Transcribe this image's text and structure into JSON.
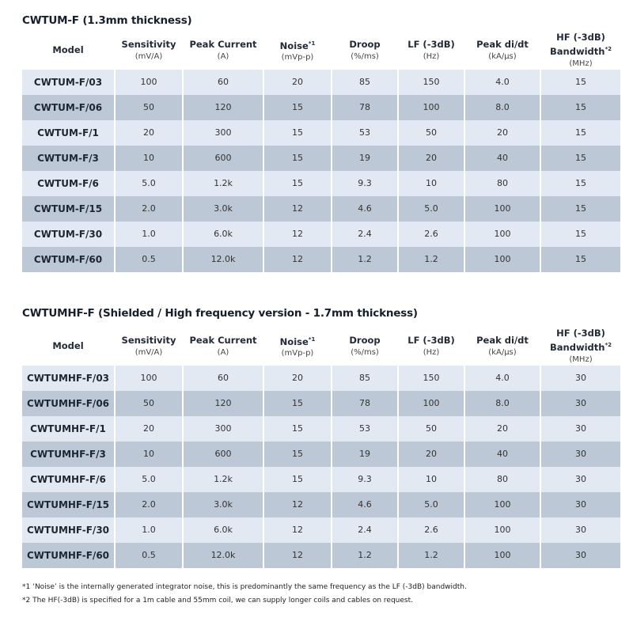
{
  "headers": [
    {
      "label": "Model",
      "unit": "",
      "sup": ""
    },
    {
      "label": "Sensitivity",
      "unit": "(mV/A)",
      "sup": ""
    },
    {
      "label": "Peak Current",
      "unit": "(A)",
      "sup": ""
    },
    {
      "label": "Noise",
      "unit": "(mVp-p)",
      "sup": "*1"
    },
    {
      "label": "Droop",
      "unit": "(%/ms)",
      "sup": ""
    },
    {
      "label": "LF (-3dB)",
      "unit": "(Hz)",
      "sup": ""
    },
    {
      "label": "Peak di/dt",
      "unit": "(kA/µs)",
      "sup": ""
    },
    {
      "label": "HF (-3dB) Bandwidth",
      "unit": "(MHz)",
      "sup": "*2"
    }
  ],
  "tables": [
    {
      "title": "CWTUM-F (1.3mm thickness)",
      "rows": [
        [
          "CWTUM-F/03",
          "100",
          "60",
          "20",
          "85",
          "150",
          "4.0",
          "15"
        ],
        [
          "CWTUM-F/06",
          "50",
          "120",
          "15",
          "78",
          "100",
          "8.0",
          "15"
        ],
        [
          "CWTUM-F/1",
          "20",
          "300",
          "15",
          "53",
          "50",
          "20",
          "15"
        ],
        [
          "CWTUM-F/3",
          "10",
          "600",
          "15",
          "19",
          "20",
          "40",
          "15"
        ],
        [
          "CWTUM-F/6",
          "5.0",
          "1.2k",
          "15",
          "9.3",
          "10",
          "80",
          "15"
        ],
        [
          "CWTUM-F/15",
          "2.0",
          "3.0k",
          "12",
          "4.6",
          "5.0",
          "100",
          "15"
        ],
        [
          "CWTUM-F/30",
          "1.0",
          "6.0k",
          "12",
          "2.4",
          "2.6",
          "100",
          "15"
        ],
        [
          "CWTUM-F/60",
          "0.5",
          "12.0k",
          "12",
          "1.2",
          "1.2",
          "100",
          "15"
        ]
      ]
    },
    {
      "title": "CWTUMHF-F (Shielded / High frequency version - 1.7mm thickness)",
      "rows": [
        [
          "CWTUMHF-F/03",
          "100",
          "60",
          "20",
          "85",
          "150",
          "4.0",
          "30"
        ],
        [
          "CWTUMHF-F/06",
          "50",
          "120",
          "15",
          "78",
          "100",
          "8.0",
          "30"
        ],
        [
          "CWTUMHF-F/1",
          "20",
          "300",
          "15",
          "53",
          "50",
          "20",
          "30"
        ],
        [
          "CWTUMHF-F/3",
          "10",
          "600",
          "15",
          "19",
          "20",
          "40",
          "30"
        ],
        [
          "CWTUMHF-F/6",
          "5.0",
          "1.2k",
          "15",
          "9.3",
          "10",
          "80",
          "30"
        ],
        [
          "CWTUMHF-F/15",
          "2.0",
          "3.0k",
          "12",
          "4.6",
          "5.0",
          "100",
          "30"
        ],
        [
          "CWTUMHF-F/30",
          "1.0",
          "6.0k",
          "12",
          "2.4",
          "2.6",
          "100",
          "30"
        ],
        [
          "CWTUMHF-F/60",
          "0.5",
          "12.0k",
          "12",
          "1.2",
          "1.2",
          "100",
          "30"
        ]
      ]
    }
  ],
  "notes": [
    "*1 ‘Noise’ is the internally generated integrator noise, this is predominantly the same frequency as the LF (-3dB) bandwidth.",
    "*2 The HF(-3dB) is specified for a 1m cable and 55mm coil, we can supply longer coils and cables on request."
  ],
  "colors": {
    "row_light": "#e3e9f2",
    "row_dark": "#bcc8d6"
  }
}
